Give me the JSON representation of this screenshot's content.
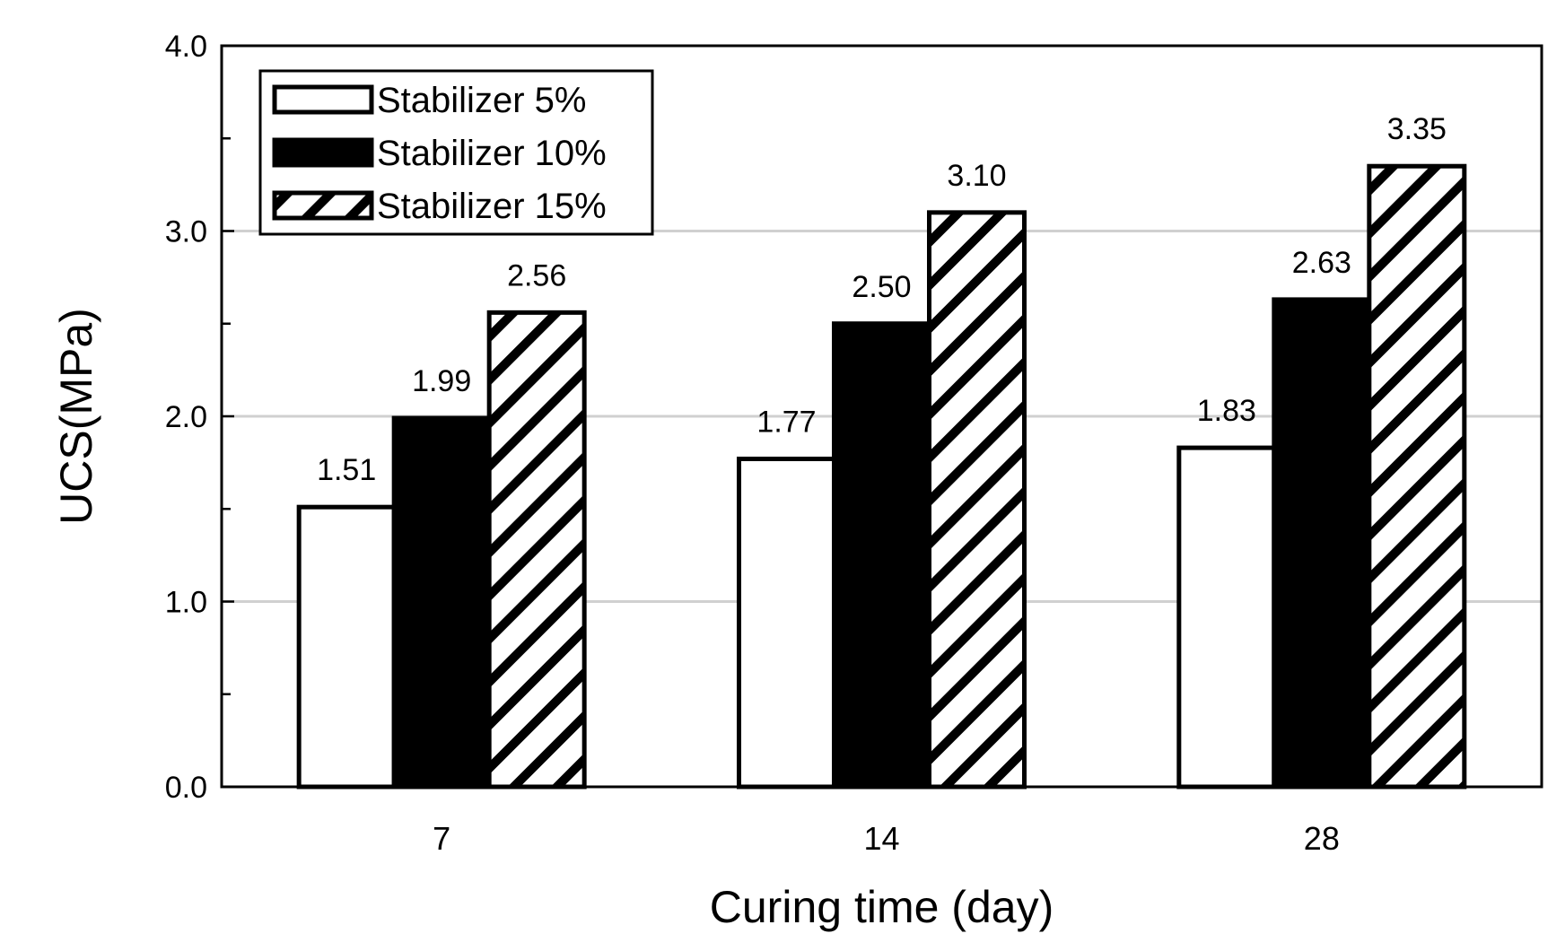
{
  "chart_data": {
    "type": "bar",
    "title": "",
    "xlabel": "Curing time (day)",
    "ylabel": "UCS(MPa)",
    "ylim": [
      0,
      4.0
    ],
    "yticks": [
      "0.0",
      "1.0",
      "2.0",
      "3.0",
      "4.0"
    ],
    "categories": [
      "7",
      "14",
      "28"
    ],
    "grid": true,
    "legend_position": "top-left",
    "series": [
      {
        "name": "Stabilizer 5%",
        "fill": "white",
        "values": [
          1.51,
          1.77,
          1.83
        ],
        "labels": [
          "1.51",
          "1.77",
          "1.83"
        ]
      },
      {
        "name": "Stabilizer 10%",
        "fill": "black",
        "values": [
          1.99,
          2.5,
          2.63
        ],
        "labels": [
          "1.99",
          "2.50",
          "2.63"
        ]
      },
      {
        "name": "Stabilizer 15%",
        "fill": "hatched",
        "values": [
          2.56,
          3.1,
          3.35
        ],
        "labels": [
          "2.56",
          "3.10",
          "3.35"
        ]
      }
    ],
    "colors": {
      "bar_stroke": "#000000",
      "grid": "#d0d0d0",
      "background": "#ffffff"
    }
  }
}
